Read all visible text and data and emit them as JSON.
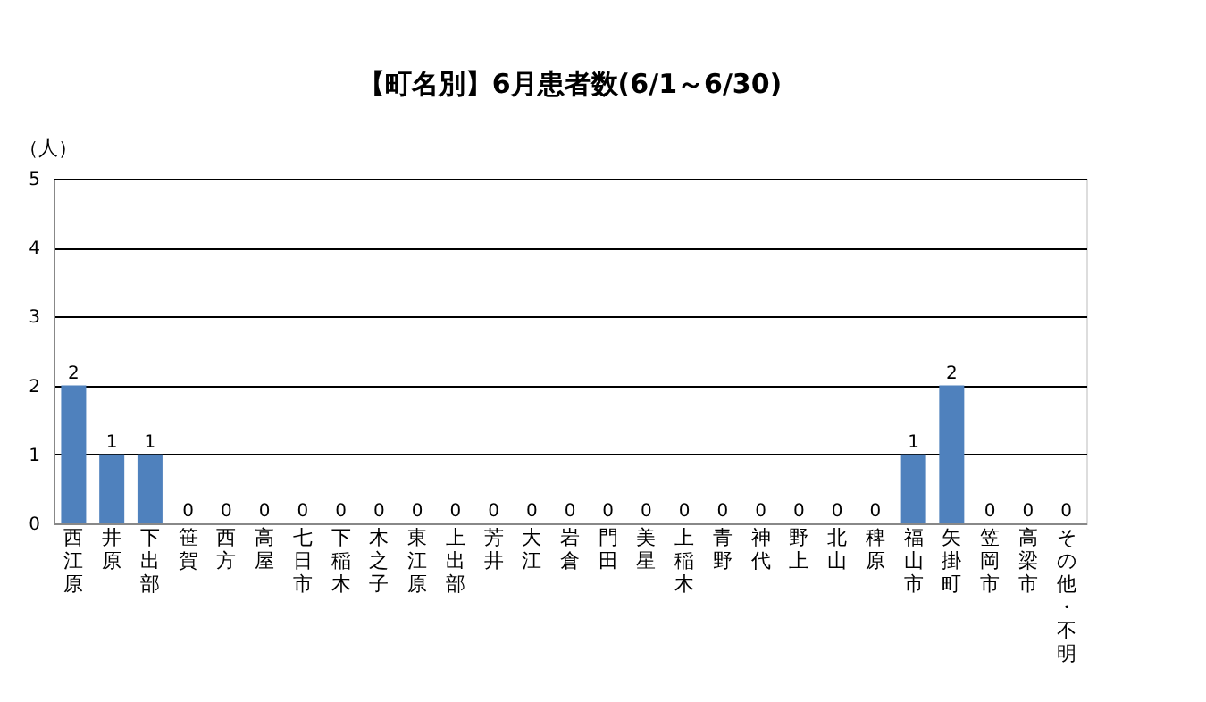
{
  "chart_data": {
    "type": "bar",
    "title": "【町名別】6月患者数(6/1～6/30)",
    "ylabel": "（人）",
    "categories": [
      "西江原",
      "井原",
      "下出部",
      "笹賀",
      "西方",
      "高屋",
      "七日市",
      "下稲木",
      "木之子",
      "東江原",
      "上出部",
      "芳井",
      "大江",
      "岩倉",
      "門田",
      "美星",
      "上稲木",
      "青野",
      "神代",
      "野上",
      "北山",
      "稗原",
      "福山市",
      "矢掛町",
      "笠岡市",
      "高梁市",
      "その他・不明"
    ],
    "values": [
      2,
      1,
      1,
      0,
      0,
      0,
      0,
      0,
      0,
      0,
      0,
      0,
      0,
      0,
      0,
      0,
      0,
      0,
      0,
      0,
      0,
      0,
      1,
      2,
      0,
      0,
      0
    ],
    "color": "#4f81bd",
    "ylim": [
      0,
      5
    ],
    "yticks": [
      0,
      1,
      2,
      3,
      4,
      5
    ],
    "grid": "y",
    "data_labels": true
  }
}
